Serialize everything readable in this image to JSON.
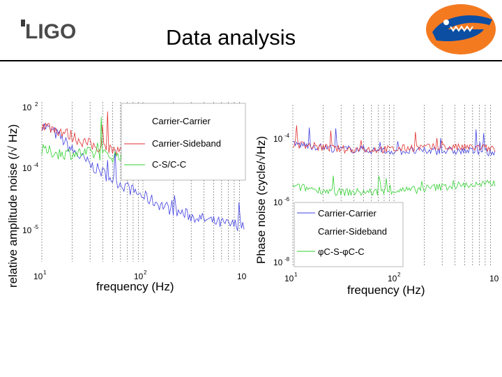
{
  "slide": {
    "title": "Data analysis",
    "logo_left_text": "LIGO",
    "logo_right": "gator-mascot-logo"
  },
  "chart_data": [
    {
      "type": "line",
      "scale": "log-log",
      "xlabel": "frequency (Hz)",
      "ylabel": "relative amplitude noise (/√ Hz)",
      "x_ticks": [
        {
          "base": "10",
          "exp": "1"
        },
        {
          "base": "10",
          "exp": "2"
        },
        {
          "base": "10",
          "exp": ""
        }
      ],
      "y_ticks": [
        {
          "base": "10",
          "exp": "2"
        },
        {
          "base": "10",
          "exp": "-4"
        },
        {
          "base": "10",
          "exp": "-5"
        }
      ],
      "xlim": [
        10,
        1000
      ],
      "ylim_log10": [
        -6.5,
        -3.7
      ],
      "legend": {
        "position": "top-right"
      },
      "series": [
        {
          "name": "Carrier-Carrier",
          "color": "#3f3fe0",
          "x": [
            10,
            15,
            20,
            30,
            50,
            70,
            100,
            150,
            200,
            300,
            500,
            700,
            1000
          ],
          "log10_y": [
            -4.1,
            -4.3,
            -4.55,
            -4.8,
            -5.05,
            -5.2,
            -5.35,
            -5.5,
            -5.6,
            -5.7,
            -5.8,
            -5.85,
            -5.85
          ]
        },
        {
          "name": "Carrier-Sideband",
          "color": "#e03030",
          "x": [
            10,
            15,
            20,
            30,
            50,
            70,
            100,
            150,
            200,
            300,
            500,
            700,
            1000
          ],
          "log10_y": [
            -4.1,
            -4.2,
            -4.3,
            -4.45,
            -4.55,
            -4.6,
            -4.65,
            -4.7,
            -4.7,
            -4.7,
            -4.75,
            -4.8,
            -4.8
          ]
        },
        {
          "name": "C-S/C-C",
          "color": "#30d030",
          "x": [
            10,
            15,
            20,
            30,
            50,
            70,
            100,
            150,
            200,
            300,
            500,
            700,
            1000
          ],
          "log10_y": [
            -4.55,
            -4.6,
            -4.6,
            -4.6,
            -4.65,
            -4.6,
            -4.6,
            -4.6,
            -4.6,
            -4.55,
            -4.55,
            -4.55,
            -4.5
          ]
        }
      ]
    },
    {
      "type": "line",
      "scale": "log-log",
      "xlabel": "frequency (Hz)",
      "ylabel": "Phase noise (cycle/√Hz)",
      "x_ticks": [
        {
          "base": "10",
          "exp": "1"
        },
        {
          "base": "10",
          "exp": "2"
        },
        {
          "base": "10",
          "exp": ""
        }
      ],
      "y_ticks": [
        {
          "base": "10",
          "exp": "-4"
        },
        {
          "base": "10",
          "exp": "-6"
        },
        {
          "base": "10",
          "exp": "-8"
        }
      ],
      "xlim": [
        10,
        1000
      ],
      "ylim_log10": [
        -8,
        -3.5
      ],
      "legend": {
        "position": "bottom-right"
      },
      "series": [
        {
          "name": "Carrier-Carrier",
          "color": "#3f3fe0",
          "x": [
            10,
            15,
            20,
            30,
            50,
            70,
            100,
            150,
            200,
            300,
            500,
            700,
            1000
          ],
          "log10_y": [
            -4.6,
            -4.65,
            -4.7,
            -4.75,
            -4.75,
            -4.8,
            -4.8,
            -4.8,
            -4.8,
            -4.8,
            -4.8,
            -4.8,
            -4.85
          ]
        },
        {
          "name": "Carrier-Sideband",
          "color": "#e03030",
          "x": [
            10,
            15,
            20,
            30,
            50,
            70,
            100,
            150,
            200,
            300,
            500,
            700,
            1000
          ],
          "log10_y": [
            -4.6,
            -4.65,
            -4.7,
            -4.75,
            -4.75,
            -4.75,
            -4.75,
            -4.7,
            -4.7,
            -4.7,
            -4.7,
            -4.7,
            -4.75
          ]
        },
        {
          "name": "φC-S-φC-C",
          "color": "#30d030",
          "x": [
            10,
            15,
            20,
            30,
            50,
            70,
            100,
            150,
            200,
            300,
            500,
            700,
            1000
          ],
          "log10_y": [
            -5.8,
            -5.85,
            -5.9,
            -5.95,
            -5.95,
            -5.95,
            -5.9,
            -5.9,
            -5.85,
            -5.8,
            -5.75,
            -5.75,
            -5.7
          ]
        }
      ]
    }
  ]
}
